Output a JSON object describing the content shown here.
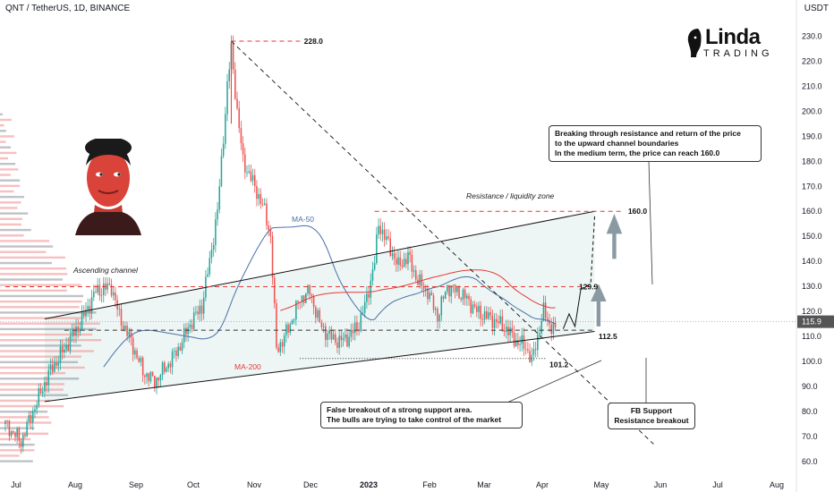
{
  "header": {
    "symbol": "QNT / TetherUS, 1D, BINANCE",
    "currency": "USDT"
  },
  "logo": {
    "line1": "Linda",
    "line2": "TRADING"
  },
  "chart_data": {
    "type": "candlestick",
    "y_ticks": [
      60,
      70,
      80,
      90,
      100,
      110,
      120,
      130,
      140,
      150,
      160,
      170,
      180,
      190,
      200,
      210,
      220,
      230
    ],
    "y_tick_labels": [
      "60.0",
      "70.0",
      "80.0",
      "90.0",
      "100.0",
      "110.0",
      "120.0",
      "130.0",
      "140.0",
      "150.0",
      "160.0",
      "170.0",
      "180.0",
      "190.0",
      "200.0",
      "210.0",
      "220.0",
      "230.0"
    ],
    "ylim": [
      55,
      238
    ],
    "x_labels": [
      "Jul",
      "Aug",
      "Sep",
      "Oct",
      "Nov",
      "Dec",
      "2023",
      "Feb",
      "Mar",
      "Apr",
      "May",
      "Jun",
      "Jul",
      "Aug"
    ],
    "current_price": "115.9",
    "price_path": [
      [
        0,
        75
      ],
      [
        8,
        68
      ],
      [
        14,
        80
      ],
      [
        22,
        95
      ],
      [
        30,
        105
      ],
      [
        38,
        115
      ],
      [
        46,
        128
      ],
      [
        54,
        130
      ],
      [
        58,
        118
      ],
      [
        64,
        108
      ],
      [
        70,
        96
      ],
      [
        76,
        92
      ],
      [
        82,
        98
      ],
      [
        88,
        105
      ],
      [
        94,
        115
      ],
      [
        100,
        122
      ],
      [
        104,
        140
      ],
      [
        108,
        160
      ],
      [
        110,
        180
      ],
      [
        113,
        210
      ],
      [
        115,
        225
      ],
      [
        118,
        200
      ],
      [
        121,
        180
      ],
      [
        124,
        175
      ],
      [
        128,
        168
      ],
      [
        132,
        160
      ],
      [
        135,
        150
      ],
      [
        138,
        105
      ],
      [
        141,
        108
      ],
      [
        145,
        115
      ],
      [
        150,
        125
      ],
      [
        155,
        128
      ],
      [
        160,
        115
      ],
      [
        165,
        110
      ],
      [
        170,
        108
      ],
      [
        175,
        110
      ],
      [
        180,
        115
      ],
      [
        184,
        125
      ],
      [
        188,
        140
      ],
      [
        190,
        155
      ],
      [
        193,
        150
      ],
      [
        196,
        145
      ],
      [
        200,
        138
      ],
      [
        205,
        142
      ],
      [
        210,
        132
      ],
      [
        215,
        128
      ],
      [
        220,
        118
      ],
      [
        225,
        130
      ],
      [
        230,
        128
      ],
      [
        235,
        125
      ],
      [
        240,
        120
      ],
      [
        245,
        118
      ],
      [
        250,
        116
      ],
      [
        255,
        113
      ],
      [
        260,
        108
      ],
      [
        265,
        106
      ],
      [
        268,
        100
      ],
      [
        271,
        110
      ],
      [
        274,
        120
      ],
      [
        277,
        115
      ],
      [
        280,
        112
      ]
    ],
    "candle_interval_days": 1,
    "levels": [
      {
        "label": "228.0",
        "value": 228.0,
        "style": "dashed-red"
      },
      {
        "label": "160.0",
        "value": 160.0,
        "style": "dashed-red"
      },
      {
        "label": "129.9",
        "value": 129.9,
        "style": "dashed-red"
      },
      {
        "label": "112.5",
        "value": 112.5,
        "style": "dashed-dark"
      },
      {
        "label": "101.2",
        "value": 101.2,
        "style": "dotted-dark"
      }
    ],
    "annotations": {
      "resistance_zone": "Resistance / liquidity zone",
      "ascending_channel": "Ascending channel",
      "ma50": "MA-50",
      "ma200": "MA-200"
    },
    "notes": {
      "top_right": [
        "Breaking through resistance and return of the price",
        "to the upward channel boundaries",
        "In the medium term, the price can reach 160.0"
      ],
      "bottom_center": [
        "False breakout of a strong support area.",
        "The bulls are trying to take control of the market"
      ],
      "fb": [
        "FB Support",
        "Resistance breakout"
      ]
    },
    "colors": {
      "up": "#26a69a",
      "down": "#ef5350",
      "ma50": "#4a6fa5",
      "ma200": "#e53935",
      "level": "#e53935",
      "price_tag": "#555555"
    }
  }
}
